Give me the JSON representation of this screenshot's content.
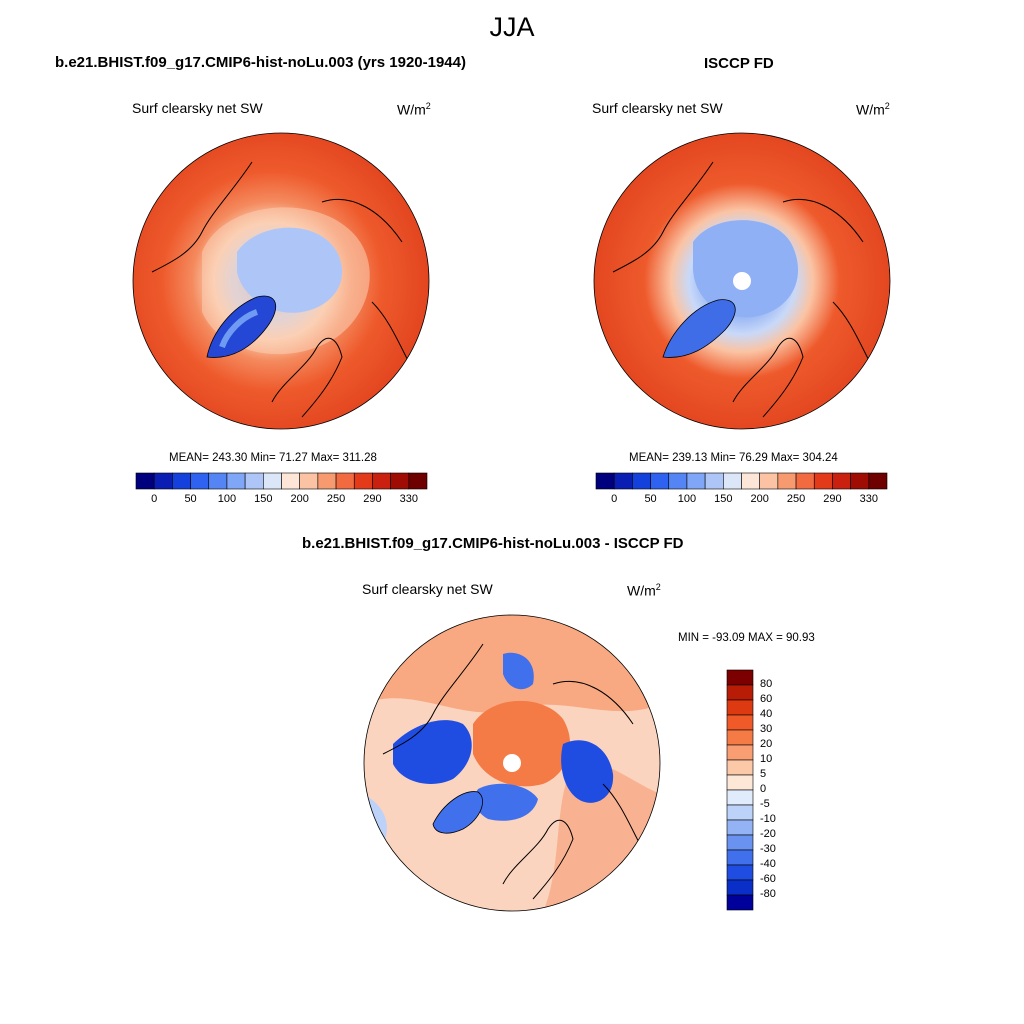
{
  "figure": {
    "title": "JJA"
  },
  "unit_label": {
    "base": "W/m",
    "sup": "2"
  },
  "colors": {
    "ocean_mid_lat": "#dd3c1a",
    "land_warm": "#ee5a2c",
    "pale": "#fbd0b4",
    "blue_ice": "#6f9bf2",
    "deep_blue": "#2447d6",
    "coast": "#000000"
  },
  "panels": [
    {
      "title": "b.e21.BHIST.f09_g17.CMIP6-hist-noLu.003 (yrs 1920-1944)",
      "variable": "Surf clearsky net SW",
      "stats": "MEAN= 243.30  Min=  71.27  Max= 311.28",
      "mean": 243.3,
      "min": 71.27,
      "max": 311.28,
      "colorbar_key": "absolute"
    },
    {
      "title": "ISCCP FD",
      "variable": "Surf clearsky net SW",
      "stats": "MEAN= 239.13  Min=  76.29  Max= 304.24",
      "mean": 239.13,
      "min": 76.29,
      "max": 304.24,
      "colorbar_key": "absolute",
      "pole_mask": true
    },
    {
      "title": "b.e21.BHIST.f09_g17.CMIP6-hist-noLu.003 - ISCCP FD",
      "variable": "Surf clearsky net SW",
      "stats": "MIN = -93.09 MAX =  90.93",
      "min": -93.09,
      "max": 90.93,
      "colorbar_key": "difference",
      "pole_mask": true
    }
  ],
  "colorbars": {
    "absolute": {
      "orientation": "horizontal",
      "colors": [
        "#00007f",
        "#0a1eb4",
        "#1441dc",
        "#2f62f0",
        "#5585f5",
        "#7fa6f7",
        "#aec6f7",
        "#dbe6f9",
        "#fde6d8",
        "#fbc3a3",
        "#f89a70",
        "#f26a40",
        "#e33a1a",
        "#c9200f",
        "#9e0c04",
        "#6e0000"
      ],
      "labels": [
        "0",
        "50",
        "100",
        "150",
        "200",
        "250",
        "290",
        "330"
      ]
    },
    "difference": {
      "orientation": "vertical",
      "colors_top_to_bottom": [
        "#7d0000",
        "#b81c06",
        "#dd3a12",
        "#f05a28",
        "#f47a46",
        "#f89e72",
        "#fbc8a8",
        "#fde8d8",
        "#e0ebfb",
        "#bcd2f8",
        "#93b3f4",
        "#6a92f0",
        "#4070ec",
        "#1f4de2",
        "#0a2fc8",
        "#00009a"
      ],
      "labels_top_to_bottom": [
        "80",
        "60",
        "40",
        "30",
        "20",
        "10",
        "5",
        "0",
        "-5",
        "-10",
        "-20",
        "-30",
        "-40",
        "-60",
        "-80"
      ]
    }
  }
}
